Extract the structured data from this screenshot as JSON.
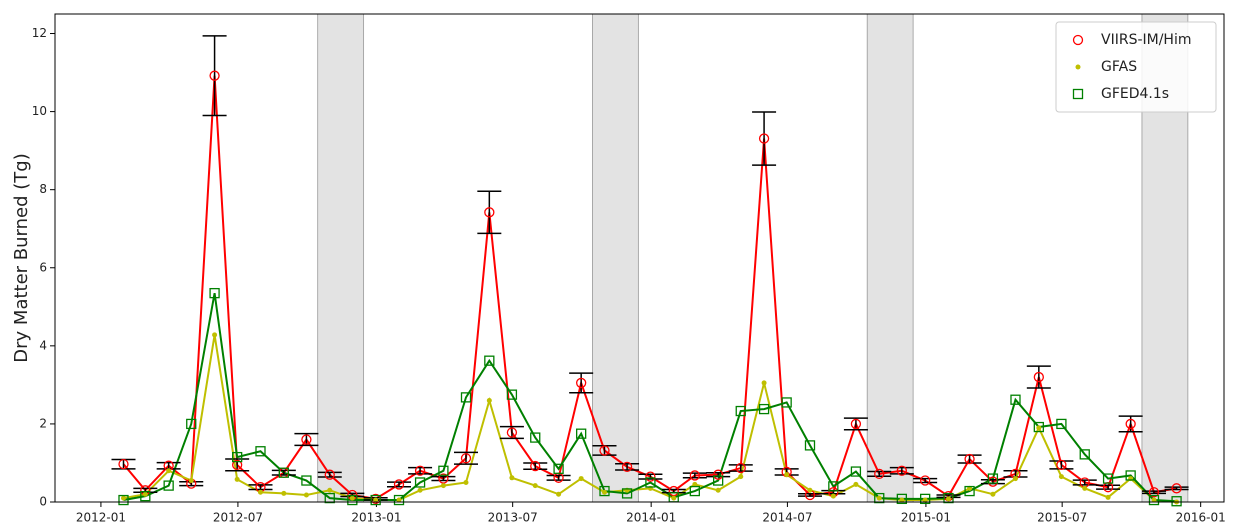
{
  "chart_data": {
    "type": "line",
    "ylabel": "Dry Matter Burned (Tg)",
    "x": [
      "2012-01",
      "2012-02",
      "2012-03",
      "2012-04",
      "2012-05",
      "2012-06",
      "2012-07",
      "2012-08",
      "2012-09",
      "2012-10",
      "2012-11",
      "2012-12",
      "2013-01",
      "2013-02",
      "2013-03",
      "2013-04",
      "2013-05",
      "2013-06",
      "2013-07",
      "2013-08",
      "2013-09",
      "2013-10",
      "2013-11",
      "2013-12",
      "2014-01",
      "2014-02",
      "2014-03",
      "2014-04",
      "2014-05",
      "2014-06",
      "2014-07",
      "2014-08",
      "2014-09",
      "2014-10",
      "2014-11",
      "2014-12",
      "2015-01",
      "2015-02",
      "2015-03",
      "2015-04",
      "2015-05",
      "2015-06",
      "2015-07",
      "2015-08",
      "2015-09",
      "2015-10",
      "2015-11"
    ],
    "series": [
      {
        "name": "VIIRS-IM/Him",
        "color": "#ff0000",
        "marker": "circle",
        "values": [
          0.97,
          0.3,
          0.93,
          0.47,
          10.92,
          0.95,
          0.38,
          0.75,
          1.6,
          0.7,
          0.18,
          0.08,
          0.45,
          0.8,
          0.6,
          1.12,
          7.42,
          1.78,
          0.92,
          0.62,
          3.05,
          1.32,
          0.9,
          0.65,
          0.28,
          0.68,
          0.7,
          0.87,
          9.31,
          0.77,
          0.18,
          0.25,
          2.0,
          0.72,
          0.8,
          0.55,
          0.15,
          1.1,
          0.52,
          0.72,
          3.2,
          0.95,
          0.5,
          0.38,
          2.0,
          0.25,
          0.35
        ],
        "errors": [
          0.12,
          0.05,
          0.08,
          0.05,
          1.02,
          0.15,
          0.06,
          0.06,
          0.15,
          0.06,
          0.04,
          0.03,
          0.06,
          0.08,
          0.05,
          0.15,
          0.54,
          0.15,
          0.08,
          0.06,
          0.25,
          0.12,
          0.08,
          0.06,
          0.04,
          0.06,
          0.05,
          0.08,
          0.68,
          0.08,
          0.03,
          0.04,
          0.15,
          0.06,
          0.08,
          0.05,
          0.03,
          0.1,
          0.05,
          0.08,
          0.28,
          0.1,
          0.06,
          0.05,
          0.2,
          0.03,
          0.03
        ]
      },
      {
        "name": "GFAS",
        "color": "#bfbf00",
        "marker": "dot",
        "values": [
          0.1,
          0.2,
          0.8,
          0.55,
          4.28,
          0.58,
          0.25,
          0.22,
          0.18,
          0.3,
          0.1,
          0.05,
          0.05,
          0.3,
          0.42,
          0.5,
          2.6,
          0.62,
          0.42,
          0.2,
          0.6,
          0.25,
          0.3,
          0.35,
          0.1,
          0.45,
          0.3,
          0.65,
          3.05,
          0.7,
          0.3,
          0.15,
          0.45,
          0.1,
          0.05,
          0.05,
          0.08,
          0.35,
          0.2,
          0.6,
          1.9,
          0.65,
          0.35,
          0.12,
          0.6,
          0.05,
          0
        ]
      },
      {
        "name": "GFED4.1s",
        "color": "#008000",
        "marker": "square",
        "values": [
          0.05,
          0.15,
          0.42,
          2.0,
          5.35,
          1.15,
          1.3,
          0.75,
          0.55,
          0.1,
          0.05,
          0.05,
          0.05,
          0.5,
          0.8,
          2.68,
          3.62,
          2.75,
          1.65,
          0.85,
          1.75,
          0.28,
          0.22,
          0.5,
          0.12,
          0.28,
          0.55,
          2.33,
          2.38,
          2.55,
          1.45,
          0.4,
          0.78,
          0.1,
          0.08,
          0.08,
          0.1,
          0.28,
          0.6,
          2.62,
          1.92,
          2.0,
          1.22,
          0.6,
          0.68,
          0.05,
          0.02
        ]
      }
    ],
    "shaded_spans": [
      [
        "2012-10",
        "2012-12"
      ],
      [
        "2013-10",
        "2013-12"
      ],
      [
        "2014-10",
        "2014-12"
      ],
      [
        "2015-10",
        "2015-12"
      ]
    ],
    "shade_color": "#e3e3e3",
    "xlim": [
      "2011-11",
      "2016-02"
    ],
    "xticks": [
      "2012-01",
      "2012-07",
      "2013-01",
      "2013-07",
      "2014-01",
      "2014-07",
      "2015-01",
      "2015-07",
      "2016-01"
    ],
    "ylim": [
      0,
      12.5
    ],
    "yticks": [
      0,
      2,
      4,
      6,
      8,
      10,
      12
    ],
    "legend": "upper right"
  }
}
